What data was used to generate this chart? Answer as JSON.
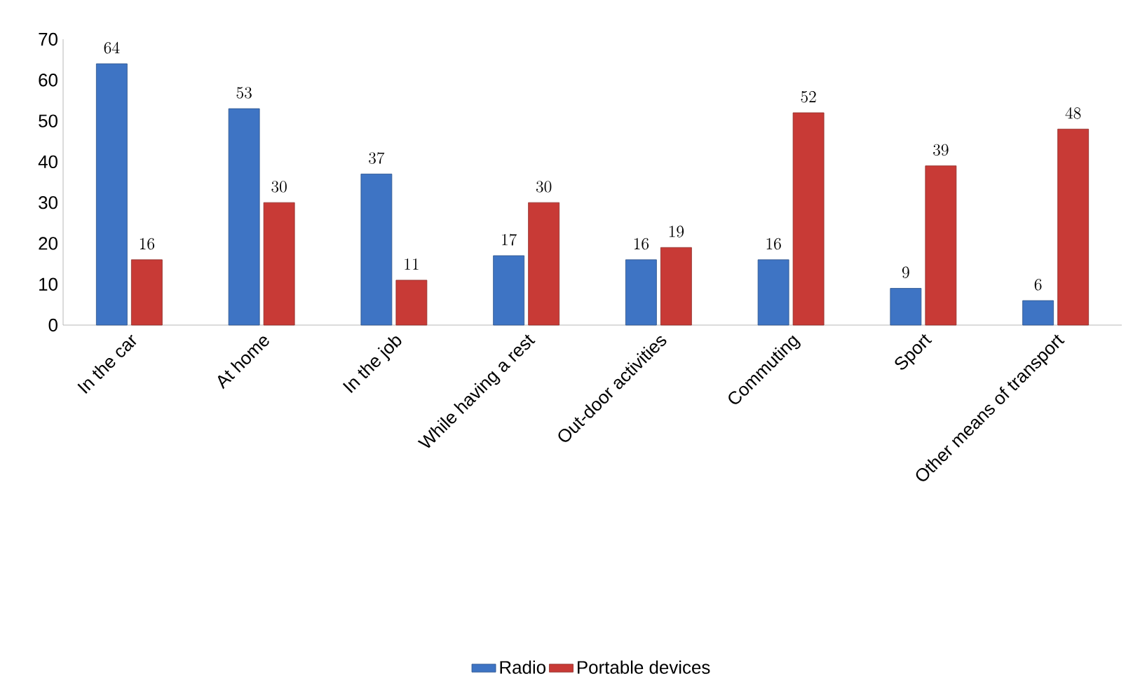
{
  "chart_data": {
    "type": "bar",
    "categories": [
      "In the car",
      "At home",
      "In the job",
      "While having a rest",
      "Out-door activities",
      "Commuting",
      "Sport",
      "Other means of transport"
    ],
    "series": [
      {
        "name": "Radio",
        "color": "#3e74c4",
        "values": [
          64,
          53,
          37,
          17,
          16,
          16,
          9,
          6
        ]
      },
      {
        "name": "Portable devices",
        "color": "#c83a36",
        "values": [
          16,
          30,
          11,
          30,
          19,
          52,
          39,
          48
        ]
      }
    ],
    "ylim": [
      0,
      70
    ],
    "yticks": [
      0,
      10,
      20,
      30,
      40,
      50,
      60,
      70
    ],
    "data_labels": true,
    "legend": "bottom",
    "grid": false
  }
}
